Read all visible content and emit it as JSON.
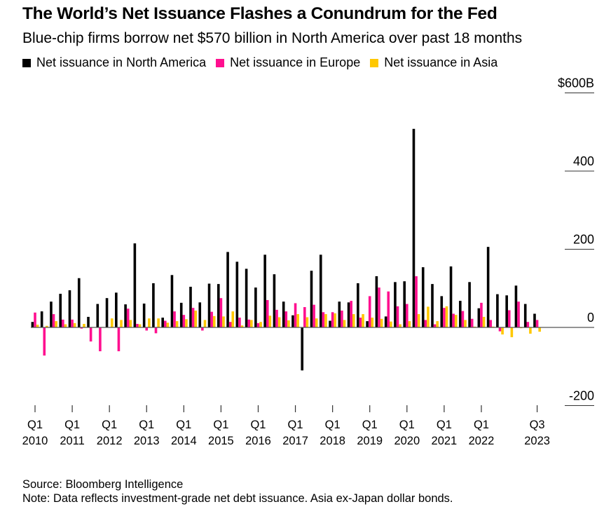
{
  "chart_data": {
    "type": "bar",
    "title": "The World’s Net Issuance Flashes a Conundrum for the Fed",
    "subtitle": "Blue-chip firms borrow net $570 billion in North America over past 18 months",
    "xlabel": "",
    "ylabel": "",
    "ylim": [
      -200,
      600
    ],
    "y_ticks": [
      {
        "value": 600,
        "label": "$600B"
      },
      {
        "value": 400,
        "label": "400"
      },
      {
        "value": 200,
        "label": "200"
      },
      {
        "value": 0,
        "label": "0"
      },
      {
        "value": -200,
        "label": "-200"
      }
    ],
    "y_axis_position": "right",
    "legend_position": "top-left",
    "x_ticks": [
      {
        "index": 0,
        "line1": "Q1",
        "line2": "2010"
      },
      {
        "index": 4,
        "line1": "Q1",
        "line2": "2011"
      },
      {
        "index": 8,
        "line1": "Q1",
        "line2": "2012"
      },
      {
        "index": 12,
        "line1": "Q1",
        "line2": "2013"
      },
      {
        "index": 16,
        "line1": "Q1",
        "line2": "2014"
      },
      {
        "index": 20,
        "line1": "Q1",
        "line2": "2015"
      },
      {
        "index": 24,
        "line1": "Q1",
        "line2": "2016"
      },
      {
        "index": 28,
        "line1": "Q1",
        "line2": "2017"
      },
      {
        "index": 32,
        "line1": "Q1",
        "line2": "2018"
      },
      {
        "index": 36,
        "line1": "Q1",
        "line2": "2019"
      },
      {
        "index": 40,
        "line1": "Q1",
        "line2": "2020"
      },
      {
        "index": 44,
        "line1": "Q1",
        "line2": "2021"
      },
      {
        "index": 48,
        "line1": "Q1",
        "line2": "2022"
      },
      {
        "index": 54,
        "line1": "Q3",
        "line2": "2023"
      }
    ],
    "categories": [
      "Q1 2010",
      "Q2 2010",
      "Q3 2010",
      "Q4 2010",
      "Q1 2011",
      "Q2 2011",
      "Q3 2011",
      "Q4 2011",
      "Q1 2012",
      "Q2 2012",
      "Q3 2012",
      "Q4 2012",
      "Q1 2013",
      "Q2 2013",
      "Q3 2013",
      "Q4 2013",
      "Q1 2014",
      "Q2 2014",
      "Q3 2014",
      "Q4 2014",
      "Q1 2015",
      "Q2 2015",
      "Q3 2015",
      "Q4 2015",
      "Q1 2016",
      "Q2 2016",
      "Q3 2016",
      "Q4 2016",
      "Q1 2017",
      "Q2 2017",
      "Q3 2017",
      "Q4 2017",
      "Q1 2018",
      "Q2 2018",
      "Q3 2018",
      "Q4 2018",
      "Q1 2019",
      "Q2 2019",
      "Q3 2019",
      "Q4 2019",
      "Q1 2020",
      "Q2 2020",
      "Q3 2020",
      "Q4 2020",
      "Q1 2021",
      "Q2 2021",
      "Q3 2021",
      "Q4 2021",
      "Q1 2022",
      "Q2 2022",
      "Q3 2022",
      "Q4 2022",
      "Q1 2023",
      "Q2 2023",
      "Q3 2023"
    ],
    "series": [
      {
        "name": "Net issuance in North America",
        "color": "#000000",
        "values": [
          14,
          41,
          66,
          86,
          95,
          126,
          27,
          60,
          75,
          89,
          59,
          215,
          61,
          113,
          25,
          134,
          63,
          104,
          64,
          112,
          111,
          193,
          168,
          150,
          102,
          186,
          136,
          66,
          31,
          -110,
          145,
          186,
          17,
          66,
          64,
          113,
          16,
          131,
          28,
          116,
          118,
          508,
          154,
          111,
          80,
          156,
          68,
          116,
          49,
          206,
          85,
          82,
          107,
          60,
          35
        ]
      },
      {
        "name": "Net issuance in Europe",
        "color": "#ff0f8f",
        "values": [
          38,
          -72,
          34,
          20,
          20,
          -3,
          -36,
          -61,
          -1,
          -61,
          48,
          9,
          -8,
          -15,
          17,
          41,
          32,
          50,
          -8,
          40,
          75,
          14,
          25,
          20,
          11,
          70,
          45,
          41,
          62,
          52,
          58,
          39,
          39,
          43,
          68,
          25,
          80,
          102,
          92,
          54,
          60,
          131,
          19,
          8,
          50,
          35,
          42,
          22,
          63,
          19,
          -10,
          44,
          66,
          14,
          19
        ]
      },
      {
        "name": "Net issuance in Asia",
        "color": "#ffc800",
        "values": [
          7,
          4,
          16,
          8,
          11,
          9,
          -1,
          1,
          23,
          19,
          19,
          8,
          23,
          23,
          12,
          16,
          21,
          43,
          19,
          29,
          28,
          41,
          5,
          19,
          14,
          30,
          26,
          18,
          34,
          26,
          23,
          34,
          36,
          19,
          34,
          34,
          25,
          22,
          15,
          8,
          16,
          34,
          53,
          16,
          54,
          32,
          19,
          2,
          27,
          2,
          -18,
          -25,
          -2,
          -16,
          -11
        ]
      }
    ],
    "source": "Source: Bloomberg Intelligence",
    "note": "Note: Data reflects investment-grade net debt issuance. Asia ex-Japan dollar bonds."
  }
}
